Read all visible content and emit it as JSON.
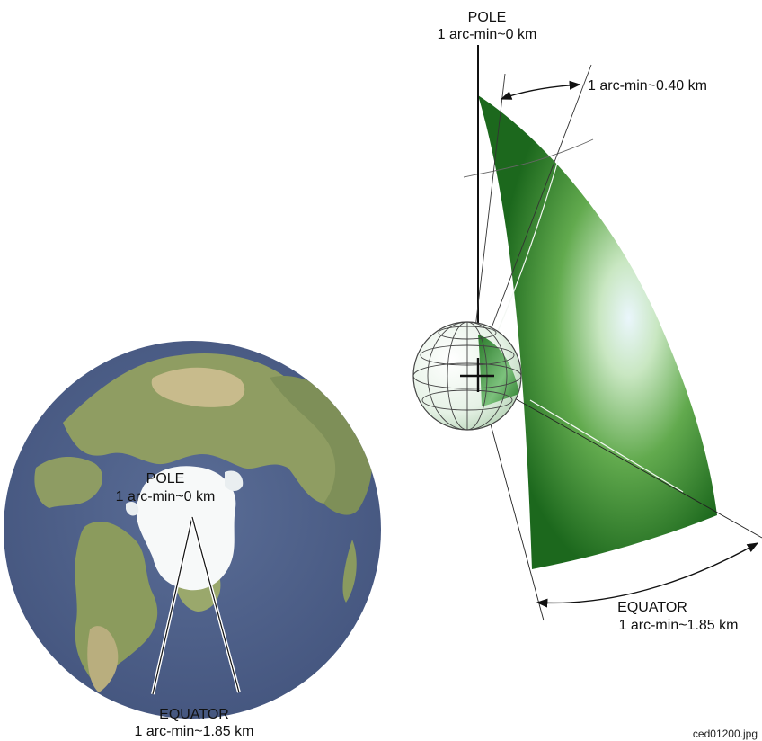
{
  "earth_map": {
    "pole_title": "POLE",
    "pole_value": "1 arc-min~0 km",
    "equator_title": "EQUATOR",
    "equator_value": "1 arc-min~1.85 km",
    "colors": {
      "ocean": "#4d5f8c",
      "land": "#8a9a60",
      "ice": "#ffffff"
    }
  },
  "gore_diagram": {
    "pole_title": "POLE",
    "pole_value": "1 arc-min~0 km",
    "mid_label": "1 arc-min~0.40 km",
    "equator_title": "EQUATOR",
    "equator_value": "1 arc-min~1.85 km",
    "colors": {
      "dark_green": "#1e6a1e",
      "light_center": "#e6f4fb"
    }
  },
  "image_id": "ced01200.jpg"
}
